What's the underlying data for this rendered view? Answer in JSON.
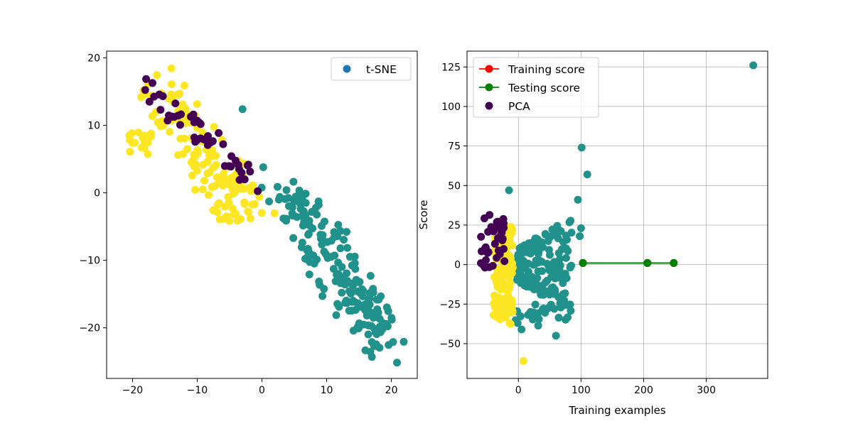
{
  "chart_data": [
    {
      "type": "scatter",
      "title": "",
      "xlabel": "",
      "ylabel": "",
      "xlim": [
        -24,
        24
      ],
      "ylim": [
        -27.5,
        21
      ],
      "xticks": [
        -20,
        -10,
        0,
        10,
        20
      ],
      "yticks": [
        -20,
        -10,
        0,
        10,
        20
      ],
      "xtick_labels": [
        "−20",
        "−10",
        "0",
        "10",
        "20"
      ],
      "ytick_labels": [
        "−20",
        "−10",
        "0",
        "10",
        "20"
      ],
      "grid": false,
      "legend_position": "top-right",
      "legend": [
        {
          "label": "t-SNE",
          "marker": "circle",
          "color": "#1f77b4"
        }
      ],
      "class_colors": {
        "purple": "#440154",
        "teal": "#21918c",
        "yellow": "#fde725"
      },
      "clusters": [
        {
          "class": "yellow",
          "count": 160,
          "center": [
            -10.5,
            6
          ],
          "shape": "band from (-22,8) to (-1,-8) around (-15,17) to (-5,0)"
        },
        {
          "class": "purple",
          "count": 50,
          "center": [
            -10,
            11
          ],
          "shape": "band from (-19,17) to (-2,0)"
        },
        {
          "class": "teal",
          "count": 190,
          "center": [
            9,
            -9
          ],
          "shape": "band from (1,3) to (21,-25)"
        }
      ],
      "outliers": [
        {
          "x": -3,
          "y": 12.4,
          "class": "teal"
        },
        {
          "x": 0.2,
          "y": 3.8,
          "class": "teal"
        }
      ]
    },
    {
      "type": "scatter",
      "title": "",
      "xlabel": "Training examples",
      "ylabel": "Score",
      "xlim": [
        -82,
        398
      ],
      "ylim": [
        -72,
        135
      ],
      "xticks": [
        0,
        100,
        200,
        300
      ],
      "yticks": [
        -50,
        -25,
        0,
        25,
        50,
        75,
        100,
        125
      ],
      "xtick_labels": [
        "0",
        "100",
        "200",
        "300"
      ],
      "ytick_labels": [
        "−50",
        "−25",
        "0",
        "25",
        "50",
        "75",
        "100",
        "125"
      ],
      "grid": true,
      "legend_position": "top-left",
      "legend": [
        {
          "label": "Training score",
          "marker": "line-circle",
          "color": "#ff0000"
        },
        {
          "label": "Testing score",
          "marker": "line-circle",
          "color": "#008000"
        },
        {
          "label": "PCA",
          "marker": "circle",
          "color": "#440154"
        }
      ],
      "series": [
        {
          "name": "Training score",
          "color": "#ff0000",
          "x": [
            103,
            206,
            248
          ],
          "y": [
            1,
            1,
            1
          ]
        },
        {
          "name": "Testing score",
          "color": "#008000",
          "x": [
            103,
            206,
            248
          ],
          "y": [
            1,
            1,
            1
          ]
        }
      ],
      "class_colors": {
        "purple": "#440154",
        "teal": "#21918c",
        "yellow": "#fde725"
      },
      "clusters": [
        {
          "class": "yellow",
          "count": 150,
          "center": [
            -28,
            0
          ],
          "shape": "vertical band x from -42 to -5, y from -40 to 25"
        },
        {
          "class": "purple",
          "count": 40,
          "center": [
            -35,
            10
          ],
          "shape": "x from -65 to -20, y from -5 to 33"
        },
        {
          "class": "teal",
          "count": 200,
          "center": [
            25,
            0
          ],
          "shape": "fan x from -5 to 90, y from -45 to 35"
        }
      ],
      "outliers": [
        {
          "x": 375,
          "y": 126,
          "class": "teal"
        },
        {
          "x": 101,
          "y": 74,
          "class": "teal"
        },
        {
          "x": 110,
          "y": 57,
          "class": "teal"
        },
        {
          "x": -15,
          "y": 47,
          "class": "teal"
        },
        {
          "x": 95,
          "y": 41,
          "class": "teal"
        },
        {
          "x": 100,
          "y": 23,
          "class": "teal"
        },
        {
          "x": 98,
          "y": 18,
          "class": "teal"
        },
        {
          "x": 5,
          "y": -41,
          "class": "teal"
        },
        {
          "x": 60,
          "y": -45,
          "class": "teal"
        },
        {
          "x": 8,
          "y": -61,
          "class": "yellow"
        }
      ]
    }
  ]
}
